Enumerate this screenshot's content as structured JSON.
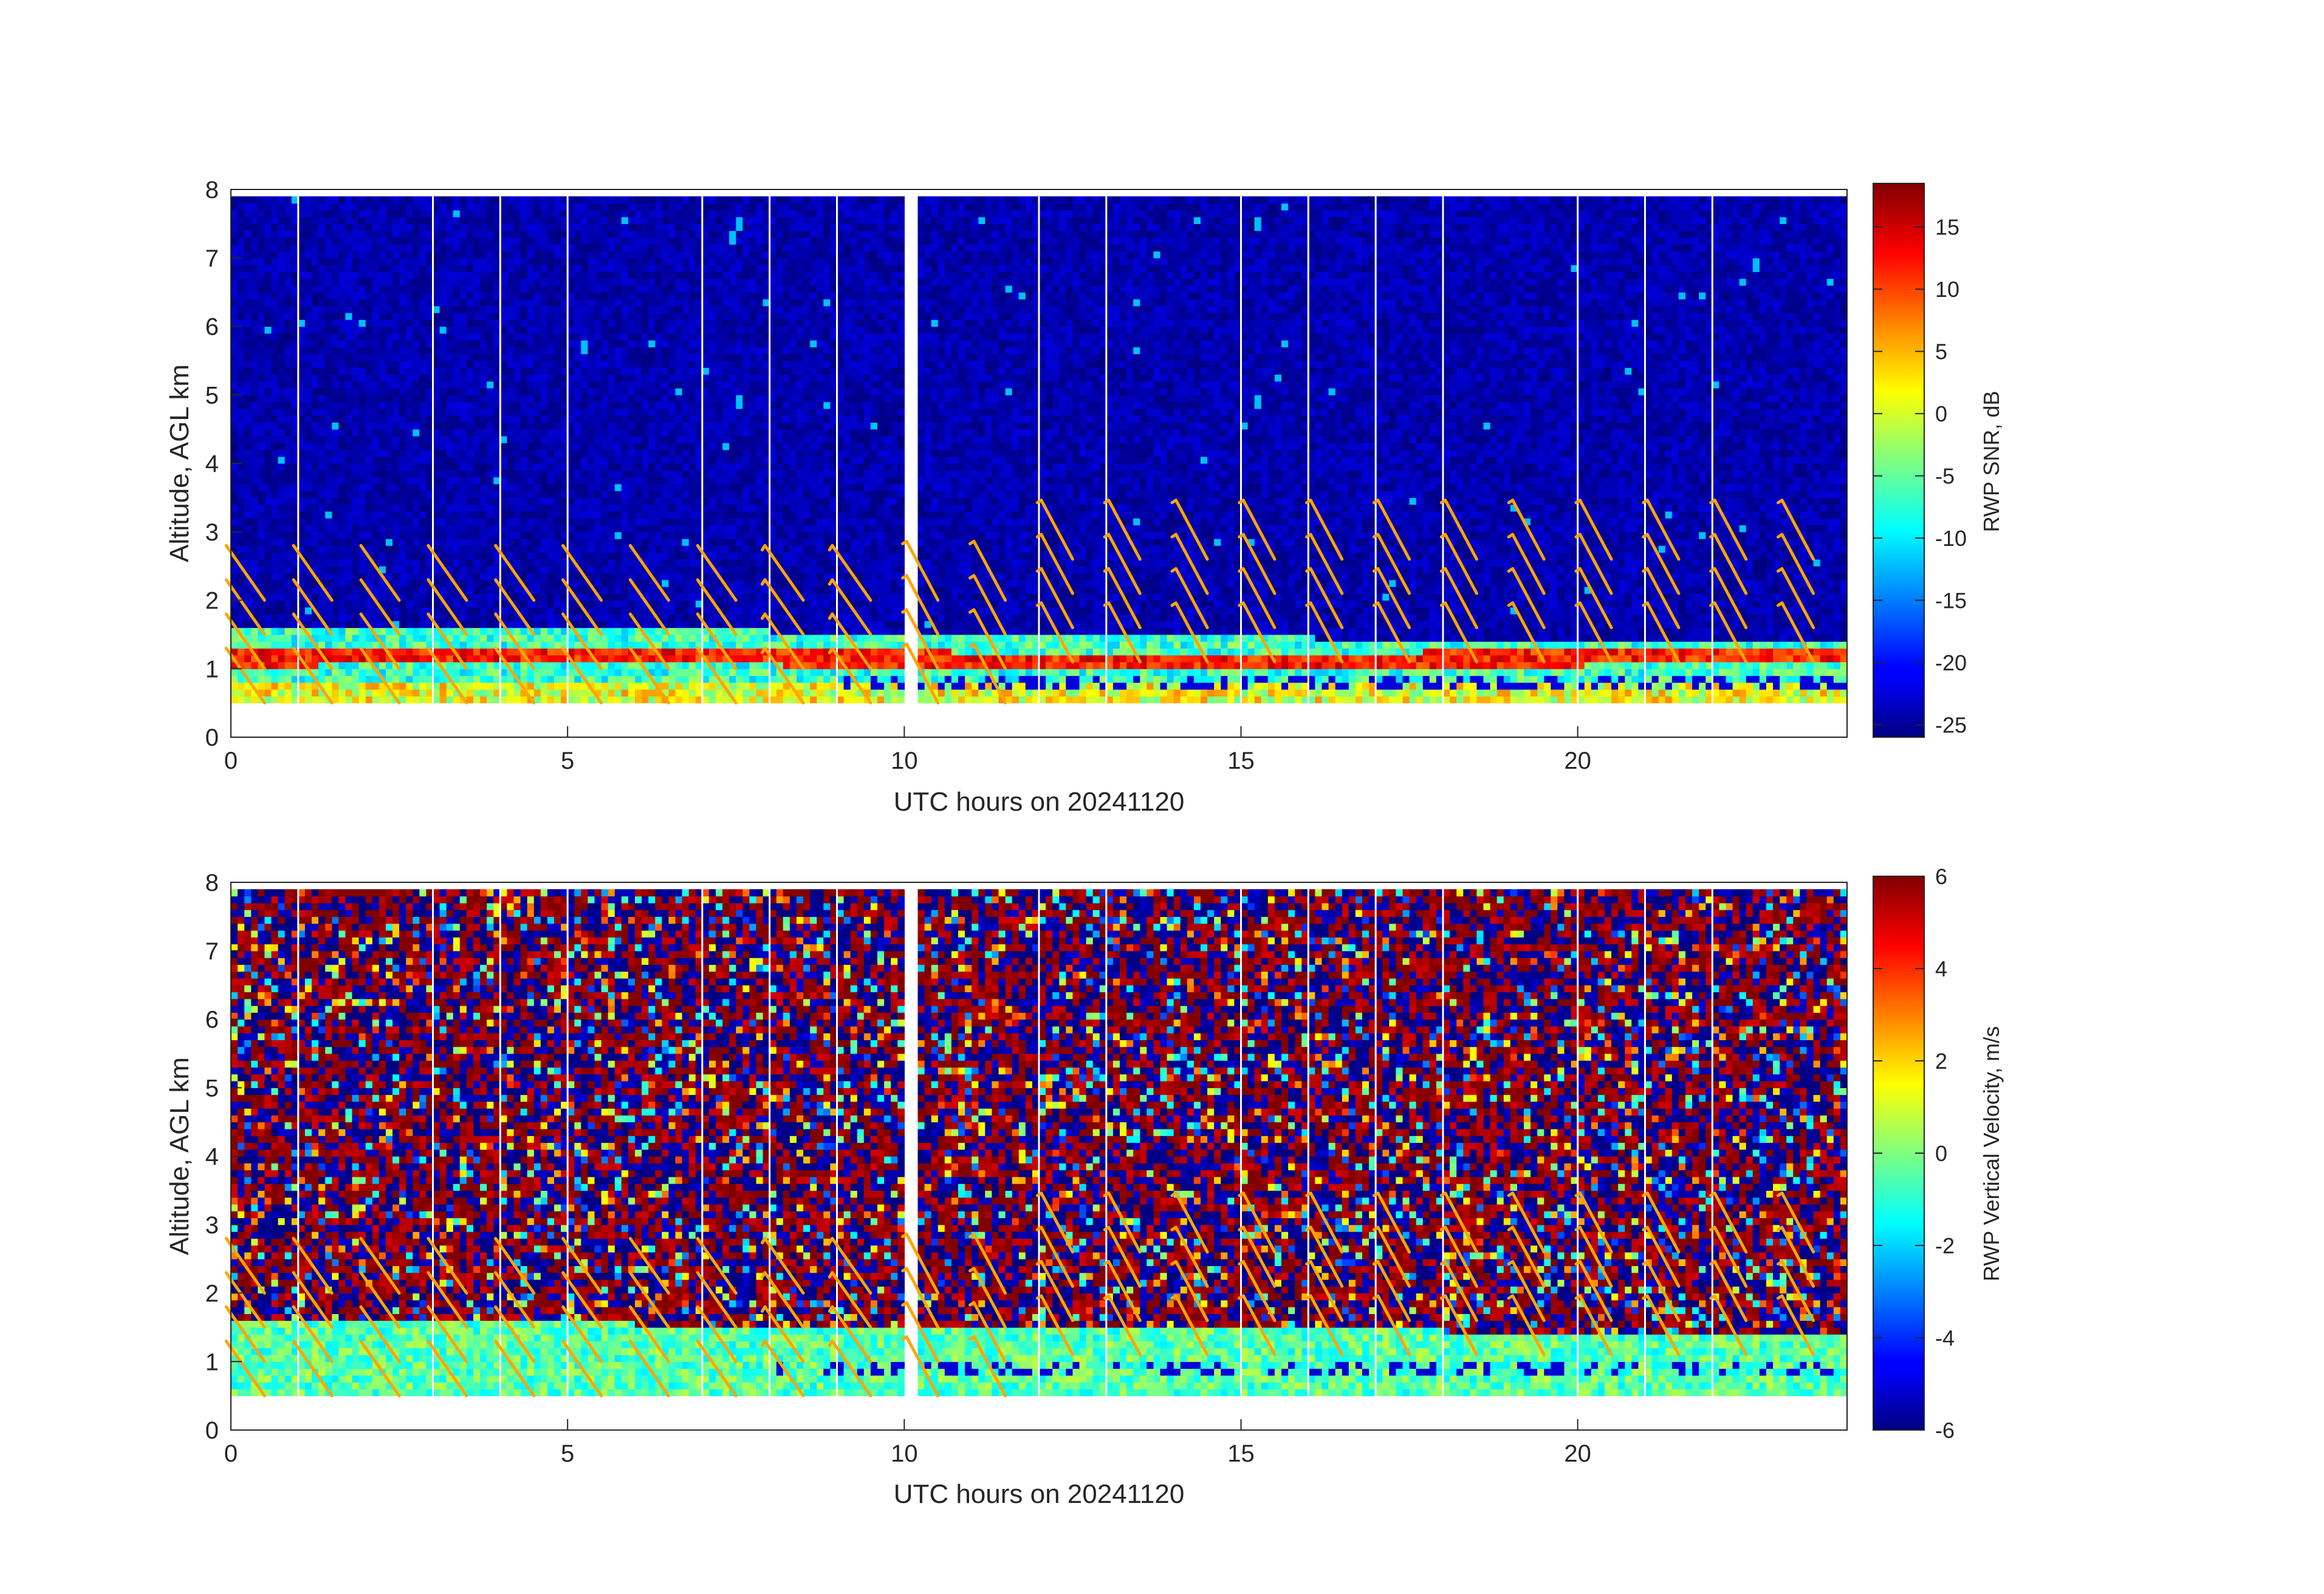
{
  "chart_data": [
    {
      "type": "heatmap",
      "panel": "top",
      "xlabel": "UTC hours on 20241120",
      "ylabel": "Altitude, AGL km",
      "xlim": [
        0,
        24
      ],
      "ylim": [
        0,
        8
      ],
      "xticks": [
        0,
        5,
        10,
        15,
        20
      ],
      "yticks": [
        0,
        1,
        2,
        3,
        4,
        5,
        6,
        7,
        8
      ],
      "data_altitude_range_km": [
        0.5,
        7.9
      ],
      "data_gap_hours": [
        10.0,
        10.2
      ],
      "colorbar": {
        "label": "RWP SNR, dB",
        "colormap": "jet",
        "clim": [
          -26,
          18.5
        ],
        "ticks": [
          15,
          10,
          5,
          0,
          -5,
          -10,
          -15,
          -20,
          -25
        ]
      },
      "boundary_layer": {
        "description": "High SNR layer below ~1.5 km",
        "top_km_start": 1.6,
        "top_km_end": 1.3,
        "bright_band_km": 1.1,
        "background_snr_db": -24
      }
    },
    {
      "type": "heatmap",
      "panel": "bottom",
      "xlabel": "UTC hours on 20241120",
      "ylabel": "Altitude, AGL km",
      "xlim": [
        0,
        24
      ],
      "ylim": [
        0,
        8
      ],
      "xticks": [
        0,
        5,
        10,
        15,
        20
      ],
      "yticks": [
        0,
        1,
        2,
        3,
        4,
        5,
        6,
        7,
        8
      ],
      "data_altitude_range_km": [
        0.5,
        7.9
      ],
      "data_gap_hours": [
        10.0,
        10.2
      ],
      "colorbar": {
        "label": "RWP Vertical Velocity, m/s",
        "colormap": "jet",
        "clim": [
          -6,
          6
        ],
        "ticks": [
          6,
          4,
          2,
          0,
          -2,
          -4,
          -6
        ]
      },
      "boundary_layer": {
        "description": "Near-zero / slightly negative velocity below ~1.5 km, noisy above",
        "velocity_ms": -0.5
      }
    }
  ],
  "wind_barbs": {
    "color": "#ffa500",
    "times_hours": [
      0.5,
      1.5,
      2.5,
      3.5,
      4.5,
      5.5,
      6.5,
      7.5,
      8.5,
      9.5,
      10.5,
      11.5,
      12.5,
      13.5,
      14.5,
      15.5,
      16.5,
      17.5,
      18.5,
      19.5,
      20.5,
      21.5,
      22.5,
      23.5
    ],
    "heights_km": [
      0.5,
      1.0,
      1.5,
      2.0
    ]
  },
  "vertical_gridlines_hours": [
    1,
    3,
    4,
    5,
    7,
    8,
    9,
    12,
    13,
    15,
    16,
    17,
    18,
    20,
    21,
    22
  ]
}
